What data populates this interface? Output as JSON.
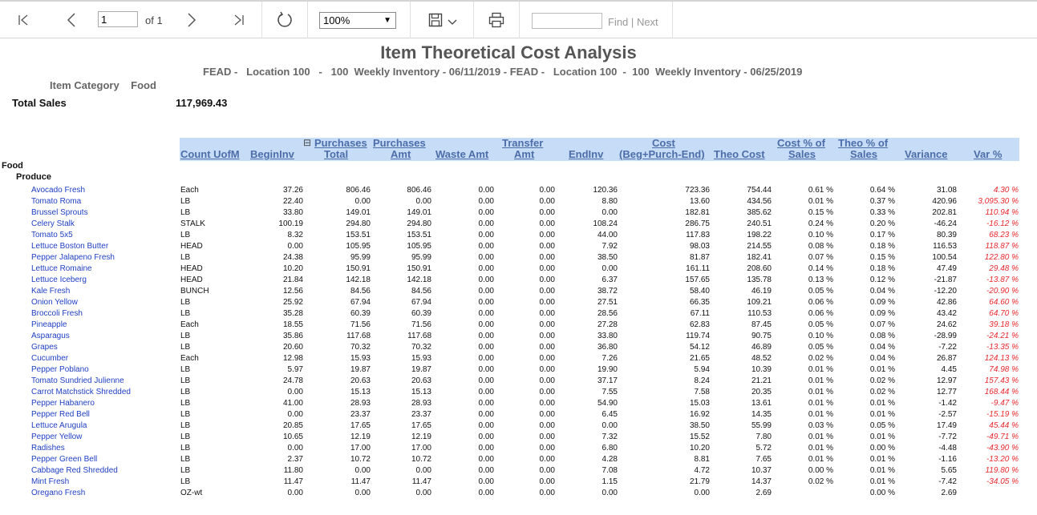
{
  "toolbar": {
    "page_value": "1",
    "page_of": "of 1",
    "zoom": "100%",
    "find_label": "Find",
    "find_sep": "|",
    "next_label": "Next",
    "icons": [
      "first-page-icon",
      "prev-page-icon",
      "next-page-icon",
      "last-page-icon",
      "refresh-icon",
      "save-icon",
      "print-icon"
    ]
  },
  "report": {
    "title": "Item Theoretical Cost Analysis",
    "subtitle": "FEAD -   Location 100   -   100  Weekly Inventory - 06/11/2019 - FEAD -   Location 100  -  100  Weekly Inventory - 06/25/2019",
    "category_label": "Item Category",
    "category_value": "Food",
    "total_sales_label": "Total Sales",
    "total_sales_value": "117,969.43",
    "group": "Food",
    "subgroup": "Produce",
    "columns": {
      "count_uofm": "Count UofM",
      "begin_inv": "BeginInv",
      "purch_total_1": "Purchases",
      "purch_total_2": "Total",
      "purch_amt_1": "Purchases",
      "purch_amt_2": "Amt",
      "waste_amt": "Waste Amt",
      "transfer_1": "Transfer",
      "transfer_2": "Amt",
      "end_inv": "EndInv",
      "cost_1": "Cost",
      "cost_2": "(Beg+Purch-End)",
      "theo_cost": "Theo Cost",
      "cost_pct_1": "Cost % of",
      "cost_pct_2": "Sales",
      "theo_pct_1": "Theo % of",
      "theo_pct_2": "Sales",
      "variance": "Variance",
      "var_pct": "Var %",
      "collapse_toggle": "⊟"
    },
    "rows": [
      [
        "Avocado Fresh",
        "Each",
        "37.26",
        "806.46",
        "806.46",
        "0.00",
        "0.00",
        "120.36",
        "723.36",
        "754.44",
        "0.61 %",
        "0.64 %",
        "31.08",
        "4.30 %"
      ],
      [
        "Tomato Roma",
        "LB",
        "22.40",
        "0.00",
        "0.00",
        "0.00",
        "0.00",
        "8.80",
        "13.60",
        "434.56",
        "0.01 %",
        "0.37 %",
        "420.96",
        "3,095.30 %"
      ],
      [
        "Brussel Sprouts",
        "LB",
        "33.80",
        "149.01",
        "149.01",
        "0.00",
        "0.00",
        "0.00",
        "182.81",
        "385.62",
        "0.15 %",
        "0.33 %",
        "202.81",
        "110.94 %"
      ],
      [
        "Celery Stalk",
        "STALK",
        "100.19",
        "294.80",
        "294.80",
        "0.00",
        "0.00",
        "108.24",
        "286.75",
        "240.51",
        "0.24 %",
        "0.20 %",
        "-46.24",
        "-16.12 %"
      ],
      [
        "Tomato 5x5",
        "LB",
        "8.32",
        "153.51",
        "153.51",
        "0.00",
        "0.00",
        "44.00",
        "117.83",
        "198.22",
        "0.10 %",
        "0.17 %",
        "80.39",
        "68.23 %"
      ],
      [
        "Lettuce Boston Butter",
        "HEAD",
        "0.00",
        "105.95",
        "105.95",
        "0.00",
        "0.00",
        "7.92",
        "98.03",
        "214.55",
        "0.08 %",
        "0.18 %",
        "116.53",
        "118.87 %"
      ],
      [
        "Pepper Jalapeno Fresh",
        "LB",
        "24.38",
        "95.99",
        "95.99",
        "0.00",
        "0.00",
        "38.50",
        "81.87",
        "182.41",
        "0.07 %",
        "0.15 %",
        "100.54",
        "122.80 %"
      ],
      [
        "Lettuce Romaine",
        "HEAD",
        "10.20",
        "150.91",
        "150.91",
        "0.00",
        "0.00",
        "0.00",
        "161.11",
        "208.60",
        "0.14 %",
        "0.18 %",
        "47.49",
        "29.48 %"
      ],
      [
        "Lettuce Iceberg",
        "HEAD",
        "21.84",
        "142.18",
        "142.18",
        "0.00",
        "0.00",
        "6.37",
        "157.65",
        "135.78",
        "0.13 %",
        "0.12 %",
        "-21.87",
        "-13.87 %"
      ],
      [
        "Kale Fresh",
        "BUNCH",
        "12.56",
        "84.56",
        "84.56",
        "0.00",
        "0.00",
        "38.72",
        "58.40",
        "46.19",
        "0.05 %",
        "0.04 %",
        "-12.20",
        "-20.90 %"
      ],
      [
        "Onion Yellow",
        "LB",
        "25.92",
        "67.94",
        "67.94",
        "0.00",
        "0.00",
        "27.51",
        "66.35",
        "109.21",
        "0.06 %",
        "0.09 %",
        "42.86",
        "64.60 %"
      ],
      [
        "Broccoli Fresh",
        "LB",
        "35.28",
        "60.39",
        "60.39",
        "0.00",
        "0.00",
        "28.56",
        "67.11",
        "110.53",
        "0.06 %",
        "0.09 %",
        "43.42",
        "64.70 %"
      ],
      [
        "Pineapple",
        "Each",
        "18.55",
        "71.56",
        "71.56",
        "0.00",
        "0.00",
        "27.28",
        "62.83",
        "87.45",
        "0.05 %",
        "0.07 %",
        "24.62",
        "39.18 %"
      ],
      [
        "Asparagus",
        "LB",
        "35.86",
        "117.68",
        "117.68",
        "0.00",
        "0.00",
        "33.80",
        "119.74",
        "90.75",
        "0.10 %",
        "0.08 %",
        "-28.99",
        "-24.21 %"
      ],
      [
        "Grapes",
        "LB",
        "20.60",
        "70.32",
        "70.32",
        "0.00",
        "0.00",
        "36.80",
        "54.12",
        "46.89",
        "0.05 %",
        "0.04 %",
        "-7.22",
        "-13.35 %"
      ],
      [
        "Cucumber",
        "Each",
        "12.98",
        "15.93",
        "15.93",
        "0.00",
        "0.00",
        "7.26",
        "21.65",
        "48.52",
        "0.02 %",
        "0.04 %",
        "26.87",
        "124.13 %"
      ],
      [
        "Pepper Poblano",
        "LB",
        "5.97",
        "19.87",
        "19.87",
        "0.00",
        "0.00",
        "19.90",
        "5.94",
        "10.39",
        "0.01 %",
        "0.01 %",
        "4.45",
        "74.98 %"
      ],
      [
        "Tomato Sundried Julienne",
        "LB",
        "24.78",
        "20.63",
        "20.63",
        "0.00",
        "0.00",
        "37.17",
        "8.24",
        "21.21",
        "0.01 %",
        "0.02 %",
        "12.97",
        "157.43 %"
      ],
      [
        "Carrot Matchstick Shredded",
        "LB",
        "0.00",
        "15.13",
        "15.13",
        "0.00",
        "0.00",
        "7.55",
        "7.58",
        "20.35",
        "0.01 %",
        "0.02 %",
        "12.77",
        "168.44 %"
      ],
      [
        "Pepper Habanero",
        "LB",
        "41.00",
        "28.93",
        "28.93",
        "0.00",
        "0.00",
        "54.90",
        "15.03",
        "13.61",
        "0.01 %",
        "0.01 %",
        "-1.42",
        "-9.47 %"
      ],
      [
        "Pepper Red Bell",
        "LB",
        "0.00",
        "23.37",
        "23.37",
        "0.00",
        "0.00",
        "6.45",
        "16.92",
        "14.35",
        "0.01 %",
        "0.01 %",
        "-2.57",
        "-15.19 %"
      ],
      [
        "Lettuce Arugula",
        "LB",
        "20.85",
        "17.65",
        "17.65",
        "0.00",
        "0.00",
        "0.00",
        "38.50",
        "55.99",
        "0.03 %",
        "0.05 %",
        "17.49",
        "45.44 %"
      ],
      [
        "Pepper Yellow",
        "LB",
        "10.65",
        "12.19",
        "12.19",
        "0.00",
        "0.00",
        "7.32",
        "15.52",
        "7.80",
        "0.01 %",
        "0.01 %",
        "-7.72",
        "-49.71 %"
      ],
      [
        "Radishes",
        "LB",
        "0.00",
        "17.00",
        "17.00",
        "0.00",
        "0.00",
        "6.80",
        "10.20",
        "5.72",
        "0.01 %",
        "0.00 %",
        "-4.48",
        "-43.90 %"
      ],
      [
        "Pepper Green Bell",
        "LB",
        "2.37",
        "10.72",
        "10.72",
        "0.00",
        "0.00",
        "4.28",
        "8.81",
        "7.65",
        "0.01 %",
        "0.01 %",
        "-1.16",
        "-13.20 %"
      ],
      [
        "Cabbage Red Shredded",
        "LB",
        "11.80",
        "0.00",
        "0.00",
        "0.00",
        "0.00",
        "7.08",
        "4.72",
        "10.37",
        "0.00 %",
        "0.01 %",
        "5.65",
        "119.80 %"
      ],
      [
        "Mint Fresh",
        "LB",
        "11.47",
        "11.47",
        "11.47",
        "0.00",
        "0.00",
        "1.15",
        "21.79",
        "14.37",
        "0.02 %",
        "0.01 %",
        "-7.42",
        "-34.05 %"
      ],
      [
        "Oregano Fresh",
        "OZ-wt",
        "0.00",
        "0.00",
        "0.00",
        "0.00",
        "0.00",
        "0.00",
        "0.00",
        "2.69",
        "",
        "0.00 %",
        "2.69",
        ""
      ]
    ]
  }
}
